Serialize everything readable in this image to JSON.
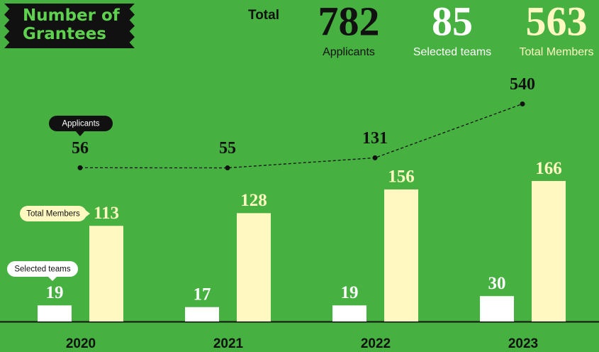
{
  "chart_data": {
    "type": "bar-line",
    "title": "Number of Grantees",
    "categories": [
      "2020",
      "2021",
      "2022",
      "2023"
    ],
    "series": [
      {
        "name": "Selected teams",
        "color": "#ffffff",
        "values": [
          19,
          17,
          19,
          30
        ]
      },
      {
        "name": "Total Members",
        "color": "#fff8c0",
        "values": [
          113,
          128,
          156,
          166
        ]
      },
      {
        "name": "Applicants",
        "color": "#111111",
        "type": "line",
        "axis": "y2",
        "values": [
          56,
          55,
          131,
          540
        ]
      }
    ],
    "ylim": [
      0,
      296
    ],
    "y2lim": [
      -1110,
      790
    ]
  },
  "summary": {
    "label": "Total",
    "items": [
      {
        "value": 782,
        "label": "Applicants",
        "color": "#111111"
      },
      {
        "value": 85,
        "label": "Selected teams",
        "color": "#ffffff"
      },
      {
        "value": 563,
        "label": "Total Members",
        "color": "#fff8c0"
      }
    ]
  }
}
